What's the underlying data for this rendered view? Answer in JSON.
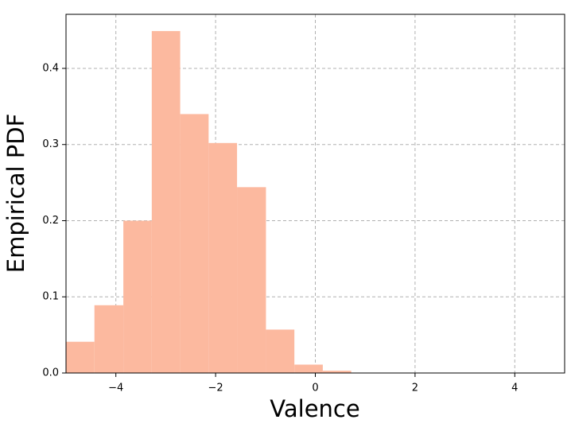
{
  "chart_data": {
    "type": "histogram",
    "x_label": "Valence",
    "y_label": "Empirical PDF",
    "bins": [
      -5,
      -4.43,
      -3.85,
      -3.28,
      -2.71,
      -2.14,
      -1.57,
      -0.99,
      -0.42,
      0.15,
      0.72
    ],
    "counts": [
      0.041,
      0.089,
      0.2,
      0.449,
      0.34,
      0.302,
      0.244,
      0.057,
      0.011,
      0.003
    ],
    "color": "#fcb99f",
    "xlim": [
      -5,
      5
    ],
    "ylim": [
      0,
      0.471
    ],
    "xticks": [
      {
        "value": -4,
        "label": "−4"
      },
      {
        "value": -2,
        "label": "−2"
      },
      0,
      2,
      4
    ],
    "yticks": [
      {
        "value": 0,
        "label": "0.0"
      },
      0.1,
      0.2,
      0.3,
      0.4
    ],
    "grid": true
  }
}
